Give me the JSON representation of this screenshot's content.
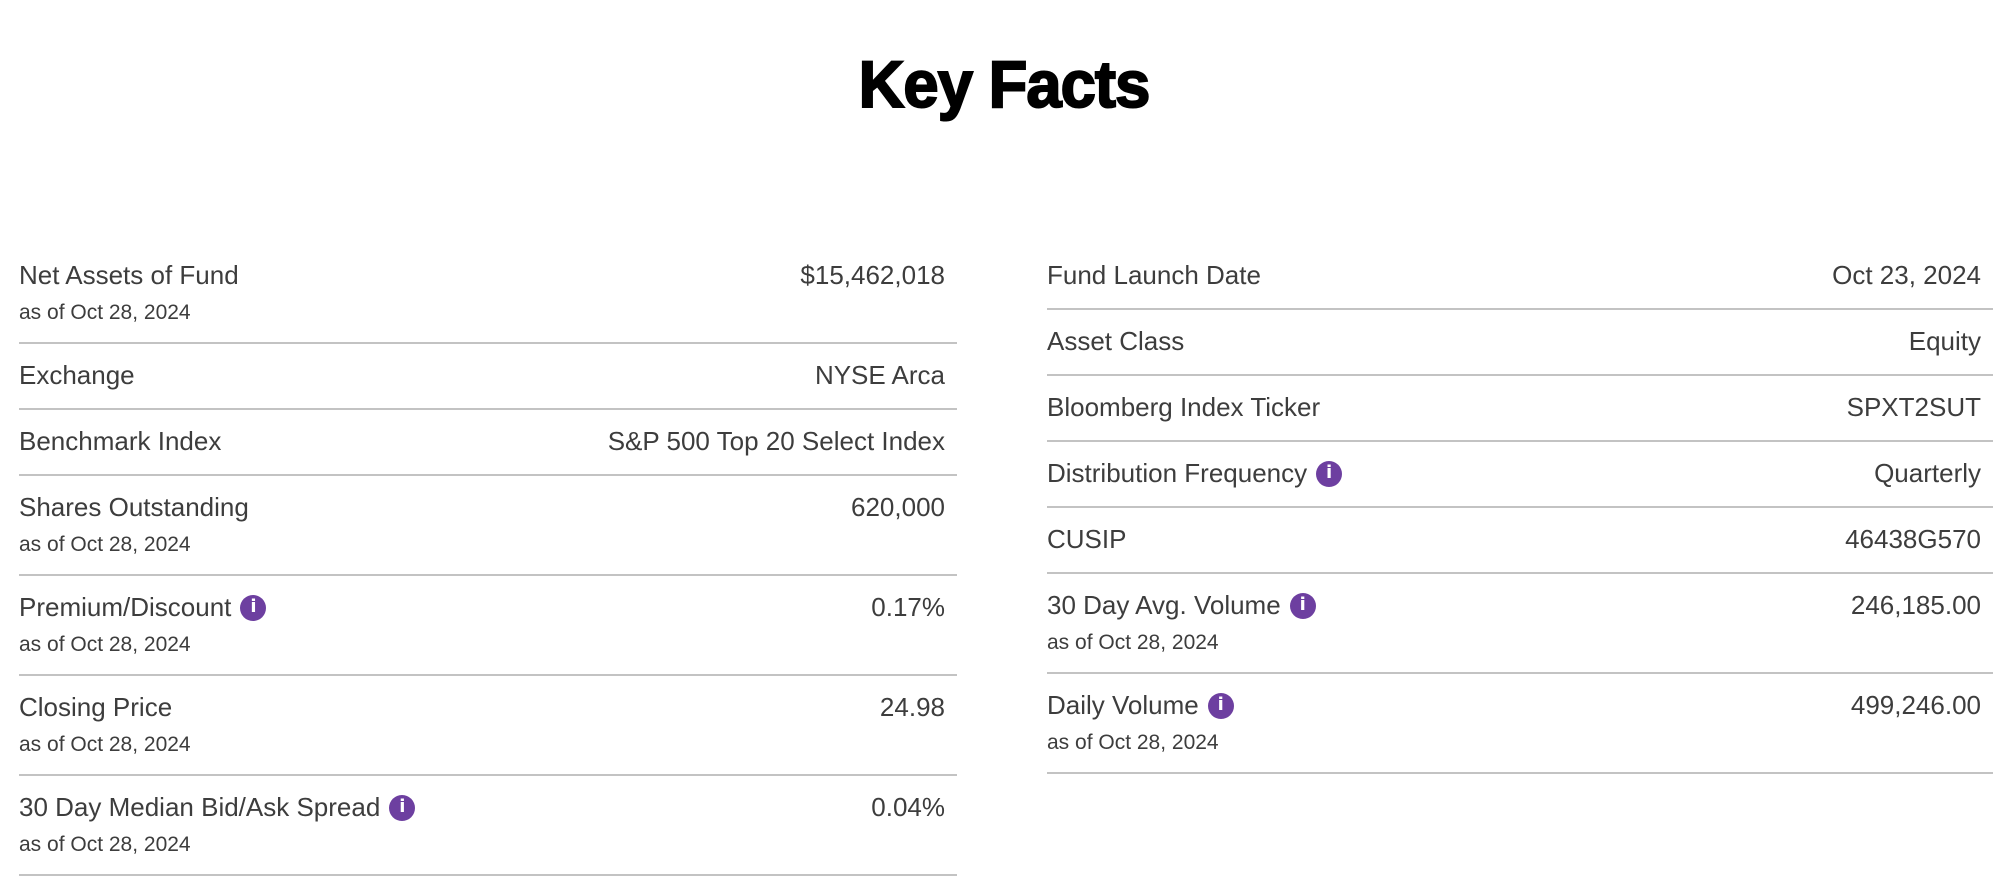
{
  "page": {
    "title": "Key Facts"
  },
  "colors": {
    "accent_purple": "#6d3fa0",
    "divider": "#c3c3c3",
    "text": "#3d3d3d",
    "title": "#000000"
  },
  "icons": {
    "info_glyph": "i"
  },
  "columns": [
    {
      "name": "left",
      "rows": [
        {
          "label": "Net Assets of Fund",
          "as_of": "as of Oct 28, 2024",
          "value": "$15,462,018",
          "info": false
        },
        {
          "label": "Exchange",
          "value": "NYSE Arca",
          "info": false
        },
        {
          "label": "Benchmark Index",
          "value": "S&P 500 Top 20 Select Index",
          "info": false
        },
        {
          "label": "Shares Outstanding",
          "as_of": "as of Oct 28, 2024",
          "value": "620,000",
          "info": false
        },
        {
          "label": "Premium/Discount",
          "as_of": "as of Oct 28, 2024",
          "value": "0.17%",
          "info": true
        },
        {
          "label": "Closing Price",
          "as_of": "as of Oct 28, 2024",
          "value": "24.98",
          "info": false
        },
        {
          "label": "30 Day Median Bid/Ask Spread",
          "as_of": "as of Oct 28, 2024",
          "value": "0.04%",
          "info": true
        }
      ]
    },
    {
      "name": "right",
      "rows": [
        {
          "label": "Fund Launch Date",
          "value": "Oct 23, 2024",
          "info": false
        },
        {
          "label": "Asset Class",
          "value": "Equity",
          "info": false
        },
        {
          "label": "Bloomberg Index Ticker",
          "value": "SPXT2SUT",
          "info": false
        },
        {
          "label": "Distribution Frequency",
          "value": "Quarterly",
          "info": true
        },
        {
          "label": "CUSIP",
          "value": "46438G570",
          "info": false
        },
        {
          "label": "30 Day Avg. Volume",
          "as_of": "as of Oct 28, 2024",
          "value": "246,185.00",
          "info": true
        },
        {
          "label": "Daily Volume",
          "as_of": "as of Oct 28, 2024",
          "value": "499,246.00",
          "info": true
        }
      ]
    }
  ]
}
